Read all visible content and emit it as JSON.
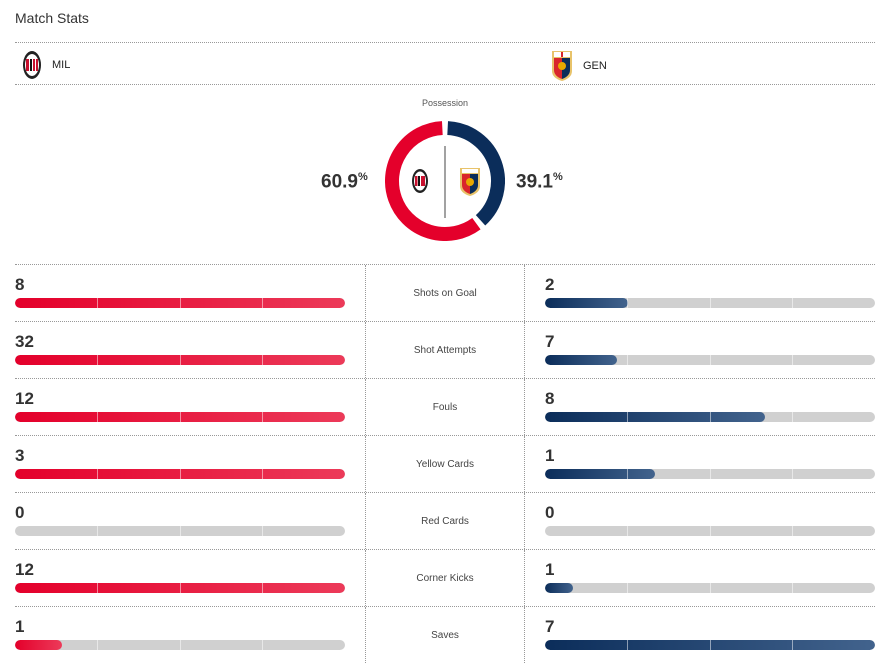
{
  "title": "Match Stats",
  "home": {
    "abbr": "MIL",
    "possession": 60.9,
    "possession_label": "60.9",
    "color": "#e4002b"
  },
  "away": {
    "abbr": "GEN",
    "possession": 39.1,
    "possession_label": "39.1",
    "color": "#0b2d5a"
  },
  "possession_title": "Possession",
  "percent_sign": "%",
  "stats": [
    {
      "label": "Shots on Goal",
      "home": "8",
      "away": "2"
    },
    {
      "label": "Shot Attempts",
      "home": "32",
      "away": "7"
    },
    {
      "label": "Fouls",
      "home": "12",
      "away": "8"
    },
    {
      "label": "Yellow Cards",
      "home": "3",
      "away": "1"
    },
    {
      "label": "Red Cards",
      "home": "0",
      "away": "0"
    },
    {
      "label": "Corner Kicks",
      "home": "12",
      "away": "1"
    },
    {
      "label": "Saves",
      "home": "1",
      "away": "7"
    }
  ]
}
